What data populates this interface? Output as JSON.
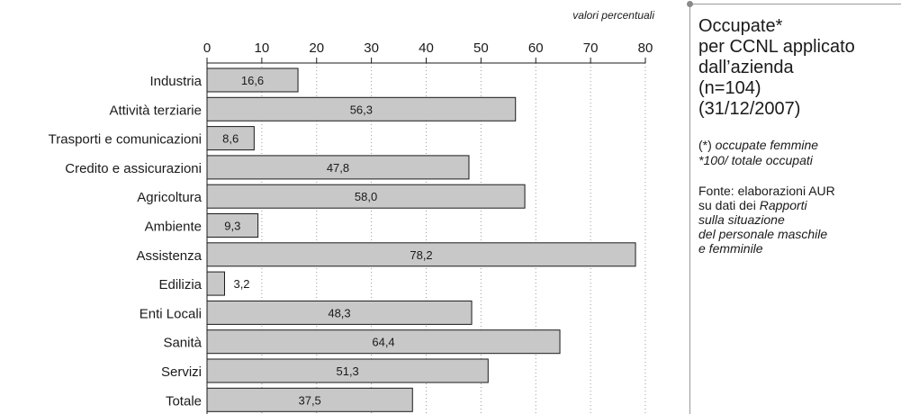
{
  "chart_data": {
    "type": "bar",
    "orientation": "horizontal",
    "units_label": "valori percentuali",
    "xlim": [
      0,
      80
    ],
    "xticks": [
      "0",
      "10",
      "20",
      "30",
      "40",
      "50",
      "60",
      "70",
      "80"
    ],
    "grid": "vertical dotted",
    "categories": [
      "Industria",
      "Attività terziarie",
      "Trasporti e comunicazioni",
      "Credito e assicurazioni",
      "Agricoltura",
      "Ambiente",
      "Assistenza",
      "Edilizia",
      "Enti Locali",
      "Sanità",
      "Servizi",
      "Totale"
    ],
    "values": [
      16.6,
      56.3,
      8.6,
      47.8,
      58.0,
      9.3,
      78.2,
      3.2,
      48.3,
      64.4,
      51.3,
      37.5
    ],
    "value_labels": [
      "16,6",
      "56,3",
      "8,6",
      "47,8",
      "58,0",
      "9,3",
      "78,2",
      "3,2",
      "48,3",
      "64,4",
      "51,3",
      "37,5"
    ],
    "bar_color": "#c8c8c8",
    "bar_stroke": "#1a1a1a"
  },
  "sidebar": {
    "title_lines": [
      "Occupate*",
      "per CCNL applicato",
      "dall’azienda",
      "(n=104)",
      "(31/12/2007)"
    ],
    "note_star": "(*)",
    "note_line1": "occupate femmine",
    "note_line2": "*100/ totale occupati",
    "source_l1_a": "Fonte: elaborazioni AUR",
    "source_l2_a": "su dati dei ",
    "source_l2_b": "Rapporti",
    "source_l3": "sulla situazione",
    "source_l4": "del personale maschile",
    "source_l5": "e femminile"
  }
}
